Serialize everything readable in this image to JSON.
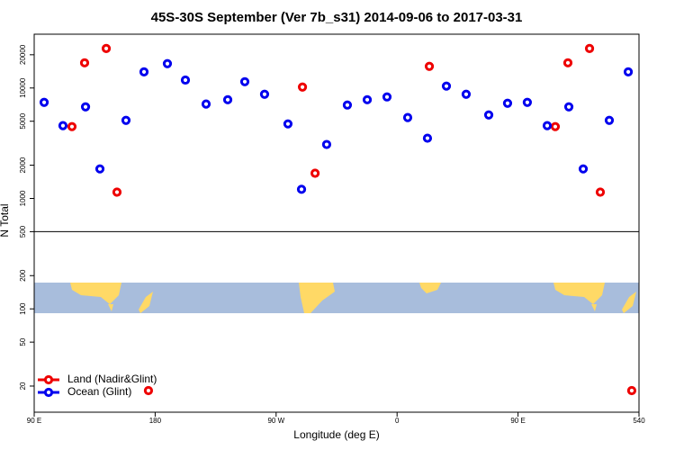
{
  "chart_data": {
    "type": "scatter",
    "title": "45S-30S September (Ver 7b_s31)   2014-09-06 to 2017-03-31",
    "x_label": "Longitude (deg E)",
    "y_label": "N Total",
    "xlim": [
      90,
      540
    ],
    "xticks": [
      {
        "value": 90,
        "label": "90 E"
      },
      180,
      {
        "value": 270,
        "label": "90 W"
      },
      {
        "value": 360,
        "label": "0"
      },
      {
        "value": 450,
        "label": "90 E"
      },
      540
    ],
    "ylim": [
      11.6,
      30700
    ],
    "log_y": true,
    "yticks": [
      20,
      50,
      100,
      200,
      500,
      1000,
      2000,
      5000,
      10000,
      20000
    ],
    "hline": 500,
    "legend": "bottom-left",
    "series": [
      {
        "name": "Land (Nadir&Glint)",
        "color": "#ee0000",
        "x": [
          118.1,
          127.5,
          143.6,
          151.6,
          175,
          289.6,
          299,
          384,
          477.7,
          487.1,
          503.2,
          511.2,
          534.6
        ],
        "values": [
          4470,
          16900,
          22800,
          1140,
          18.2,
          10200,
          1690,
          15700,
          4470,
          16900,
          22800,
          1140,
          18.2
        ]
      },
      {
        "name": "Ocean (Glint)",
        "color": "#0000ee",
        "x": [
          97.4,
          111.4,
          128.2,
          138.9,
          158.3,
          171.7,
          189.1,
          202.5,
          217.9,
          234,
          246.7,
          261.4,
          278.8,
          288.9,
          307.6,
          323,
          337.8,
          352.5,
          367.9,
          382.6,
          396.7,
          411.4,
          428.2,
          442.2,
          456.9,
          471.7,
          487.8,
          498.5,
          517.9,
          532
        ],
        "values": [
          7410,
          4560,
          6750,
          1850,
          5090,
          14000,
          16600,
          11800,
          7150,
          7830,
          11400,
          8770,
          4730,
          1210,
          3080,
          7010,
          7830,
          8300,
          5400,
          3510,
          10400,
          8770,
          5700,
          7270,
          7410,
          4560,
          6750,
          1850,
          5090,
          14000
        ]
      }
    ]
  }
}
